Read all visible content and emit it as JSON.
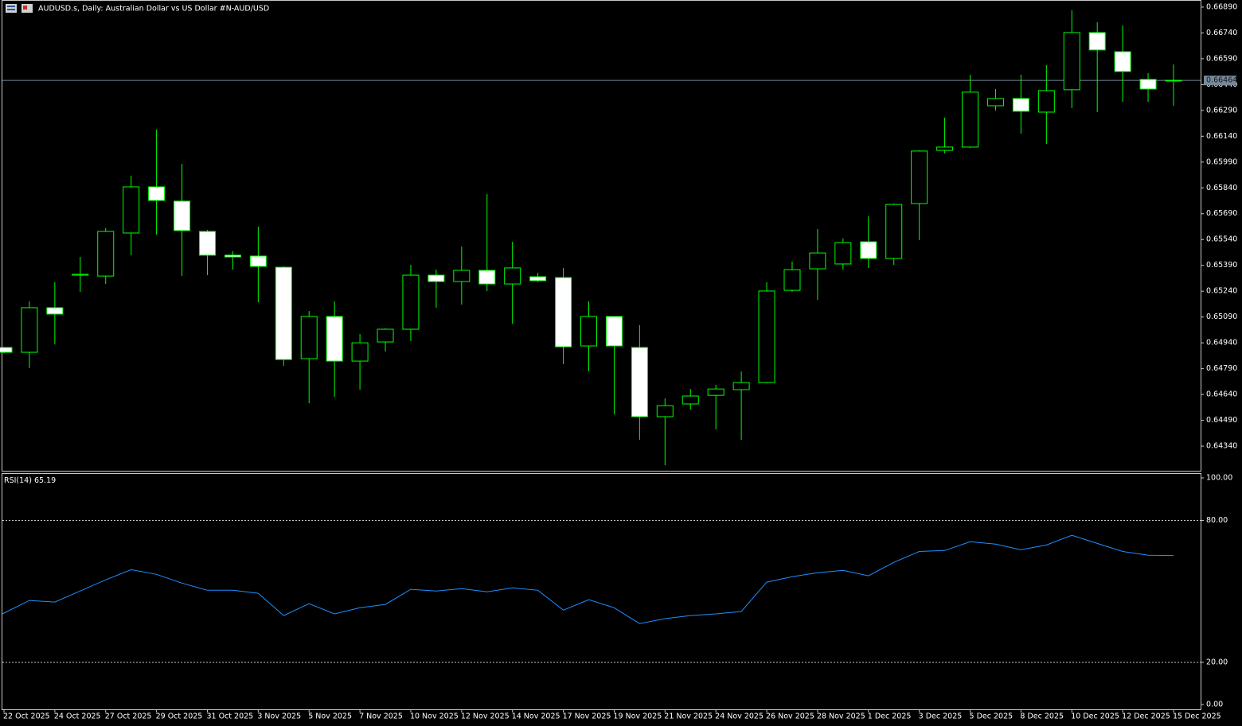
{
  "chart_data": [
    {
      "type": "candlestick",
      "title": "AUDUSD.s, Daily:  Australian Dollar vs US Dollar #N-AUD/USD",
      "categories": [
        "22 Oct 2025",
        null,
        "24 Oct 2025",
        null,
        "27 Oct 2025",
        null,
        "29 Oct 2025",
        null,
        "31 Oct 2025",
        null,
        "3 Nov 2025",
        null,
        "5 Nov 2025",
        null,
        "7 Nov 2025",
        null,
        "10 Nov 2025",
        null,
        "12 Nov 2025",
        null,
        "14 Nov 2025",
        null,
        "17 Nov 2025",
        null,
        "19 Nov 2025",
        null,
        "21 Nov 2025",
        null,
        "24 Nov 2025",
        null,
        "26 Nov 2025",
        null,
        "28 Nov 2025",
        null,
        "1 Dec 2025",
        null,
        "3 Dec 2025",
        null,
        "5 Dec 2025",
        null,
        "8 Dec 2025",
        null,
        "10 Dec 2025",
        null,
        "12 Dec 2025",
        null,
        "15 Dec 2025"
      ],
      "open": [
        0.64913,
        0.64885,
        0.65144,
        0.65333,
        0.65328,
        0.65578,
        0.65846,
        0.65763,
        0.65587,
        0.65449,
        0.65444,
        0.65379,
        0.64848,
        0.65093,
        0.64834,
        0.64945,
        0.65019,
        0.65333,
        0.65296,
        0.65361,
        0.65282,
        0.65324,
        0.65319,
        0.64922,
        0.65093,
        0.64913,
        0.64511,
        0.64585,
        0.64635,
        0.64668,
        0.64709,
        0.65245,
        0.6537,
        0.65398,
        0.65527,
        0.6543,
        0.65749,
        0.66058,
        0.66077,
        0.66317,
        0.66359,
        0.6628,
        0.6641,
        0.66742,
        0.66631,
        0.6647,
        0.66465
      ],
      "high": [
        0.64917,
        0.65181,
        0.65292,
        0.65439,
        0.65606,
        0.65911,
        0.66179,
        0.6598,
        0.65596,
        0.65472,
        0.65615,
        0.65384,
        0.65125,
        0.65181,
        0.64991,
        0.65024,
        0.65393,
        0.65365,
        0.65499,
        0.65804,
        0.65527,
        0.65347,
        0.65375,
        0.65181,
        0.65093,
        0.65042,
        0.64617,
        0.64672,
        0.64696,
        0.64774,
        0.65292,
        0.65412,
        0.65601,
        0.65546,
        0.65675,
        0.65749,
        0.66058,
        0.66248,
        0.66497,
        0.66414,
        0.66497,
        0.66553,
        0.66872,
        0.66802,
        0.66784,
        0.66507,
        0.66557
      ],
      "low": [
        0.6488,
        0.64793,
        0.64931,
        0.65236,
        0.65282,
        0.65449,
        0.65569,
        0.65328,
        0.65333,
        0.65365,
        0.65176,
        0.64806,
        0.64589,
        0.64626,
        0.64668,
        0.6489,
        0.6495,
        0.65144,
        0.65162,
        0.65241,
        0.65051,
        0.65292,
        0.64816,
        0.64774,
        0.64525,
        0.64377,
        0.64229,
        0.64552,
        0.64437,
        0.64377,
        0.64705,
        0.65236,
        0.6519,
        0.65365,
        0.65375,
        0.65393,
        0.65536,
        0.6604,
        0.66072,
        0.66289,
        0.66155,
        0.66095,
        0.66303,
        0.6628,
        0.6634,
        0.6634,
        0.66317
      ],
      "close": [
        0.64885,
        0.65144,
        0.65107,
        0.65338,
        0.65587,
        0.65846,
        0.65767,
        0.65592,
        0.65449,
        0.65439,
        0.65384,
        0.64843,
        0.65093,
        0.64834,
        0.6494,
        0.65019,
        0.65333,
        0.65296,
        0.65361,
        0.65282,
        0.65375,
        0.65301,
        0.64917,
        0.65093,
        0.64922,
        0.64511,
        0.64575,
        0.64631,
        0.64672,
        0.64709,
        0.65241,
        0.65365,
        0.65462,
        0.65522,
        0.6543,
        0.65744,
        0.66054,
        0.66077,
        0.66396,
        0.66359,
        0.66285,
        0.66405,
        0.66742,
        0.66641,
        0.66516,
        0.66414,
        0.66464
      ],
      "bid": 0.66464,
      "ylim": [
        0.64197,
        0.66922
      ],
      "yticks": [
        {
          "value": 0.6689,
          "label": "0.66890"
        },
        {
          "value": 0.6674,
          "label": "0.66740"
        },
        {
          "value": 0.6659,
          "label": "0.66590"
        },
        {
          "value": 0.6644,
          "label": "0.66440"
        },
        {
          "value": 0.6629,
          "label": "0.66290"
        },
        {
          "value": 0.6614,
          "label": "0.66140"
        },
        {
          "value": 0.6599,
          "label": "0.65990"
        },
        {
          "value": 0.6584,
          "label": "0.65840"
        },
        {
          "value": 0.6569,
          "label": "0.65690"
        },
        {
          "value": 0.6554,
          "label": "0.65540"
        },
        {
          "value": 0.6539,
          "label": "0.65390"
        },
        {
          "value": 0.6524,
          "label": "0.65240"
        },
        {
          "value": 0.6509,
          "label": "0.65090"
        },
        {
          "value": 0.6494,
          "label": "0.64940"
        },
        {
          "value": 0.6479,
          "label": "0.64790"
        },
        {
          "value": 0.6464,
          "label": "0.64640"
        },
        {
          "value": 0.6449,
          "label": "0.64490"
        },
        {
          "value": 0.6434,
          "label": "0.64340"
        }
      ],
      "up_color": "#000000",
      "down_color": "#ffffff",
      "outline_color": "#00ff00",
      "bid_color": "#778899"
    },
    {
      "type": "line",
      "title": "RSI(14)",
      "values": [
        40.5,
        46.2,
        45.5,
        50.2,
        54.9,
        59.2,
        57.2,
        53.5,
        50.5,
        50.5,
        49.2,
        39.8,
        44.8,
        40.5,
        43.1,
        44.5,
        50.9,
        50.2,
        51.2,
        49.8,
        51.5,
        50.5,
        42.1,
        46.5,
        43.1,
        36.4,
        38.5,
        39.8,
        40.5,
        41.5,
        53.9,
        56.2,
        57.9,
        58.9,
        56.6,
        62.3,
        66.9,
        67.3,
        71.0,
        70.0,
        67.6,
        69.6,
        73.7,
        70.3,
        66.9,
        65.3,
        65.19
      ],
      "color": "#1e90ff",
      "ylim": [
        0,
        100
      ],
      "yticks": [
        {
          "value": 100,
          "label": "100.00"
        },
        {
          "value": 80,
          "label": "80.00"
        },
        {
          "value": 20,
          "label": "20.00"
        },
        {
          "value": 0,
          "label": "0.00"
        }
      ],
      "levels": [
        80,
        20
      ]
    }
  ]
}
